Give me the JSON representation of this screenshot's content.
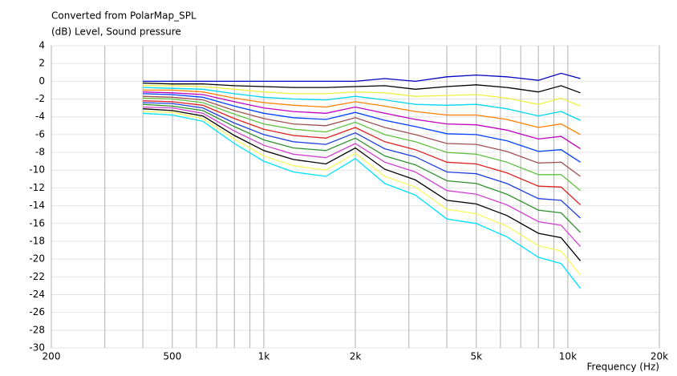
{
  "chart_data": {
    "type": "line",
    "title": "Converted from PolarMap_SPL",
    "subtitle": "(dB)  Level, Sound pressure",
    "x_label": "Frequency  (Hz)",
    "log_x": true,
    "grid": true,
    "xlim": [
      200,
      20000
    ],
    "ylim": [
      -30,
      4
    ],
    "xticks": [
      200,
      500,
      {
        "value": 1000,
        "label": "1k"
      },
      {
        "value": 2000,
        "label": "2k"
      },
      {
        "value": 5000,
        "label": "5k"
      },
      {
        "value": 10000,
        "label": "10k"
      },
      {
        "value": 20000,
        "label": "20k"
      }
    ],
    "xminor": [
      300,
      400,
      600,
      700,
      800,
      900,
      3000,
      4000,
      6000,
      7000,
      8000,
      9000
    ],
    "yticks": [
      4,
      2,
      0,
      -2,
      -4,
      -6,
      -8,
      -10,
      -12,
      -14,
      -16,
      -18,
      -20,
      -22,
      -24,
      -26,
      -28,
      -30
    ],
    "x": [
      400,
      500,
      630,
      800,
      1000,
      1250,
      1600,
      2000,
      2500,
      3150,
      4000,
      5000,
      6300,
      8000,
      9500,
      11000
    ],
    "series": [
      {
        "color": "#0000c0",
        "values": [
          0,
          0,
          0,
          0,
          0,
          0,
          0,
          0,
          0.3,
          0,
          0.5,
          0.7,
          0.5,
          0.1,
          0.9,
          0.3
        ]
      },
      {
        "color": "#000000",
        "values": [
          -0.2,
          -0.3,
          -0.3,
          -0.5,
          -0.6,
          -0.7,
          -0.7,
          -0.6,
          -0.5,
          -0.9,
          -0.6,
          -0.4,
          -0.7,
          -1.2,
          -0.5,
          -1.3
        ]
      },
      {
        "color": "#f0f040",
        "values": [
          -0.5,
          -0.5,
          -0.6,
          -0.9,
          -1.2,
          -1.4,
          -1.4,
          -1.2,
          -1.3,
          -1.7,
          -1.6,
          -1.5,
          -1.9,
          -2.6,
          -1.9,
          -2.8
        ]
      },
      {
        "color": "#00d8f0",
        "values": [
          -0.7,
          -0.8,
          -0.9,
          -1.4,
          -1.8,
          -2.0,
          -2.1,
          -1.7,
          -2.1,
          -2.6,
          -2.7,
          -2.6,
          -3.1,
          -3.9,
          -3.4,
          -4.4
        ]
      },
      {
        "color": "#ff8000",
        "values": [
          -1.0,
          -1.0,
          -1.2,
          -1.9,
          -2.4,
          -2.7,
          -2.9,
          -2.3,
          -2.8,
          -3.4,
          -3.8,
          -3.8,
          -4.3,
          -5.2,
          -4.8,
          -6.0
        ]
      },
      {
        "color": "#c000c0",
        "values": [
          -1.2,
          -1.3,
          -1.5,
          -2.3,
          -3.0,
          -3.4,
          -3.6,
          -2.9,
          -3.6,
          -4.3,
          -4.8,
          -4.9,
          -5.5,
          -6.5,
          -6.2,
          -7.6
        ]
      },
      {
        "color": "#0040ff",
        "values": [
          -1.4,
          -1.5,
          -1.8,
          -2.8,
          -3.6,
          -4.1,
          -4.3,
          -3.5,
          -4.4,
          -5.1,
          -5.9,
          -6.0,
          -6.7,
          -7.9,
          -7.7,
          -9.1
        ]
      },
      {
        "color": "#a05050",
        "values": [
          -1.7,
          -1.8,
          -2.1,
          -3.3,
          -4.2,
          -4.8,
          -5.0,
          -4.1,
          -5.2,
          -6.0,
          -7.0,
          -7.1,
          -7.9,
          -9.2,
          -9.1,
          -10.7
        ]
      },
      {
        "color": "#60c040",
        "values": [
          -1.9,
          -2.0,
          -2.4,
          -3.7,
          -4.8,
          -5.4,
          -5.7,
          -4.6,
          -6.0,
          -6.8,
          -8.0,
          -8.2,
          -9.1,
          -10.5,
          -10.5,
          -12.3
        ]
      },
      {
        "color": "#e02020",
        "values": [
          -2.2,
          -2.3,
          -2.7,
          -4.2,
          -5.4,
          -6.1,
          -6.4,
          -5.2,
          -6.8,
          -7.7,
          -9.1,
          -9.3,
          -10.3,
          -11.8,
          -11.9,
          -13.9
        ]
      },
      {
        "color": "#2040e0",
        "values": [
          -2.4,
          -2.5,
          -3.0,
          -4.7,
          -6.0,
          -6.8,
          -7.1,
          -5.8,
          -7.6,
          -8.5,
          -10.2,
          -10.4,
          -11.5,
          -13.2,
          -13.4,
          -15.4
        ]
      },
      {
        "color": "#309030",
        "values": [
          -2.6,
          -2.8,
          -3.3,
          -5.1,
          -6.6,
          -7.5,
          -7.8,
          -6.4,
          -8.4,
          -9.4,
          -11.2,
          -11.5,
          -12.7,
          -14.5,
          -14.8,
          -17.0
        ]
      },
      {
        "color": "#d040d0",
        "values": [
          -2.9,
          -3.0,
          -3.6,
          -5.6,
          -7.2,
          -8.2,
          -8.6,
          -7.0,
          -9.1,
          -10.2,
          -12.3,
          -12.7,
          -13.9,
          -15.8,
          -16.2,
          -18.6
        ]
      },
      {
        "color": "#000000",
        "values": [
          -3.1,
          -3.3,
          -3.9,
          -6.1,
          -7.8,
          -8.8,
          -9.3,
          -7.5,
          -9.9,
          -11.1,
          -13.4,
          -13.8,
          -15.1,
          -17.1,
          -17.6,
          -20.2
        ]
      },
      {
        "color": "#f8f860",
        "values": [
          -3.4,
          -3.5,
          -4.2,
          -6.5,
          -8.4,
          -9.5,
          -10.0,
          -8.1,
          -10.7,
          -11.9,
          -14.4,
          -14.9,
          -16.3,
          -18.5,
          -19.1,
          -21.8
        ]
      },
      {
        "color": "#00e0ff",
        "values": [
          -3.6,
          -3.8,
          -4.5,
          -7.0,
          -9.0,
          -10.2,
          -10.7,
          -8.7,
          -11.5,
          -12.8,
          -15.5,
          -16.0,
          -17.5,
          -19.8,
          -20.5,
          -23.3
        ]
      }
    ]
  }
}
